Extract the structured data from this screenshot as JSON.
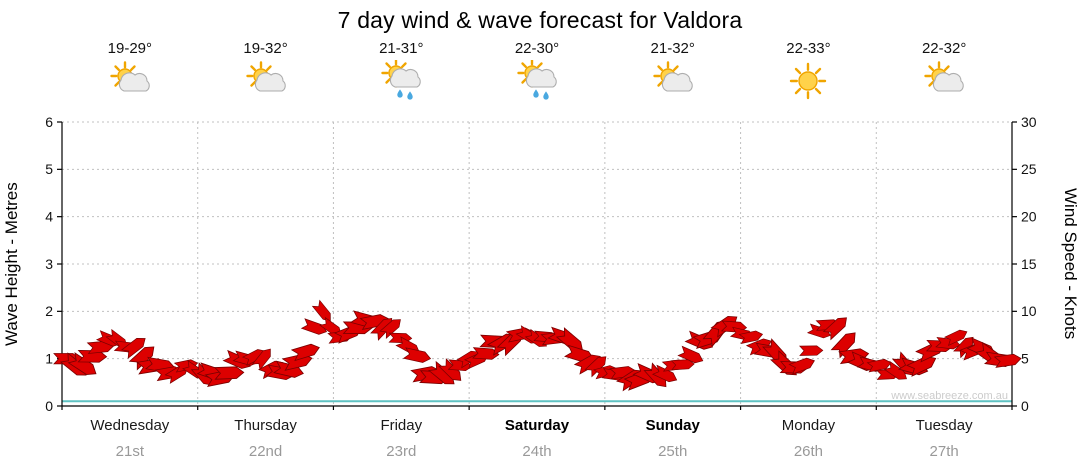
{
  "title": "7 day wind & wave forecast for Valdora",
  "watermark": "www.seabreeze.com.au",
  "colors": {
    "barb_fill": "#dd0000",
    "barb_outline": "#7a0000",
    "wave_line": "#5fc2c2",
    "grid": "#c0c0c0",
    "axis": "#000000",
    "tick_text": "#111111",
    "date_text": "#999999",
    "watermark_text": "#cccccc"
  },
  "chart_data": {
    "type": "wind-barb-timeseries",
    "title": "7 day wind & wave forecast for Valdora",
    "ylabel_left": "Wave Height - Metres",
    "ylabel_right": "Wind Speed - Knots",
    "ylim_left": [
      0,
      6
    ],
    "ytick_step_left": 1,
    "ylim_right": [
      0,
      30
    ],
    "ytick_step_right": 5,
    "grid": "dotted",
    "points_per_day": 8,
    "wave_line_m": 0.1,
    "days": [
      {
        "name": "Wednesday",
        "date": "21st",
        "temp": "19-29°",
        "icon": "partly-cloudy",
        "weekend": false,
        "wind_knots": [
          5.0,
          4.0,
          6.5,
          7.0,
          6.0,
          4.5,
          3.5,
          4.0
        ]
      },
      {
        "name": "Thursday",
        "date": "22nd",
        "temp": "19-32°",
        "icon": "partly-cloudy",
        "weekend": false,
        "wind_knots": [
          3.5,
          3.0,
          4.5,
          5.5,
          4.0,
          3.5,
          6.0,
          10.0
        ]
      },
      {
        "name": "Friday",
        "date": "23rd",
        "temp": "21-31°",
        "icon": "partly-cloudy-rain",
        "weekend": false,
        "wind_knots": [
          7.0,
          8.5,
          9.0,
          8.0,
          6.5,
          3.5,
          3.0,
          4.5
        ]
      },
      {
        "name": "Saturday",
        "date": "24th",
        "temp": "22-30°",
        "icon": "partly-cloudy-rain",
        "weekend": true,
        "wind_knots": [
          5.0,
          6.5,
          7.0,
          7.5,
          7.0,
          7.5,
          5.5,
          4.0
        ]
      },
      {
        "name": "Sunday",
        "date": "25th",
        "temp": "21-32°",
        "icon": "partly-cloudy",
        "weekend": true,
        "wind_knots": [
          3.5,
          3.0,
          3.0,
          3.5,
          4.5,
          6.5,
          8.0,
          8.5
        ]
      },
      {
        "name": "Monday",
        "date": "26th",
        "temp": "22-33°",
        "icon": "sunny",
        "weekend": false,
        "wind_knots": [
          7.0,
          6.0,
          4.5,
          4.0,
          8.0,
          8.5,
          5.0,
          4.5
        ]
      },
      {
        "name": "Tuesday",
        "date": "27th",
        "temp": "22-32°",
        "icon": "partly-cloudy",
        "weekend": false,
        "wind_knots": [
          3.5,
          4.0,
          4.5,
          6.5,
          7.0,
          6.0,
          5.5,
          4.5
        ]
      }
    ]
  }
}
